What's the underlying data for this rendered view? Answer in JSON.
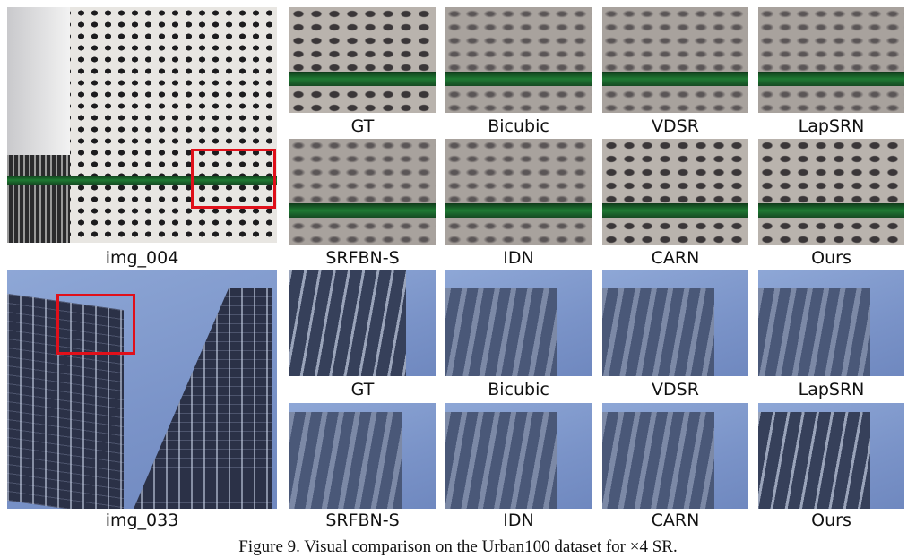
{
  "rows": [
    {
      "image_label": "img_004",
      "methods_top": [
        "GT",
        "Bicubic",
        "VDSR",
        "LapSRN"
      ],
      "methods_bottom": [
        "SRFBN-S",
        "IDN",
        "CARN",
        "Ours"
      ]
    },
    {
      "image_label": "img_033",
      "methods_top": [
        "GT",
        "Bicubic",
        "VDSR",
        "LapSRN"
      ],
      "methods_bottom": [
        "SRFBN-S",
        "IDN",
        "CARN",
        "Ours"
      ]
    }
  ],
  "figure_caption": "Figure 9. Visual comparison on the Urban100 dataset for ×4 SR.",
  "colors": {
    "highlight_box": "#e0101a"
  }
}
